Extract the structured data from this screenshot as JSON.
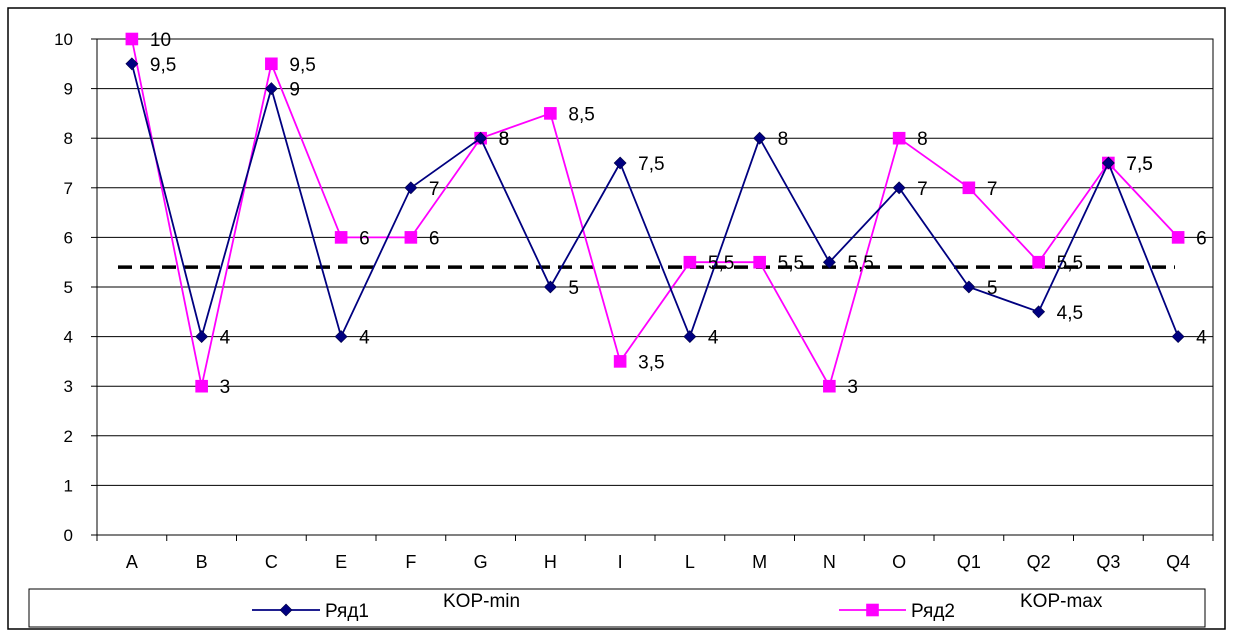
{
  "chart_data": {
    "type": "line",
    "categories": [
      "A",
      "B",
      "C",
      "E",
      "F",
      "G",
      "H",
      "I",
      "L",
      "M",
      "N",
      "O",
      "Q1",
      "Q2",
      "Q3",
      "Q4"
    ],
    "ylim": [
      0,
      10
    ],
    "yticks": [
      "0",
      "1",
      "2",
      "3",
      "4",
      "5",
      "6",
      "7",
      "8",
      "9",
      "10"
    ],
    "grid": true,
    "legend_position": "bottom",
    "reference_line": {
      "value": 5.4,
      "style": "dashed",
      "color": "#000000"
    },
    "series": [
      {
        "name": "Ряд1",
        "legend_note": "KOP-min",
        "color": "#000080",
        "marker": "diamond",
        "values": [
          9.5,
          4,
          9,
          4,
          7,
          8,
          5,
          7.5,
          4,
          8,
          5.5,
          7,
          5,
          4.5,
          7.5,
          4
        ],
        "data_labels": [
          "9,5",
          "4",
          "9",
          "4",
          "7",
          "8",
          "5",
          "7,5",
          "4",
          "8",
          "5,5",
          "7",
          "5",
          "4,5",
          "7,5",
          "4"
        ]
      },
      {
        "name": "Ряд2",
        "legend_note": "KOP-max",
        "color": "#ff00ff",
        "marker": "square",
        "values": [
          10,
          3,
          9.5,
          6,
          6,
          8,
          8.5,
          3.5,
          5.5,
          5.5,
          3,
          8,
          7,
          5.5,
          7.5,
          6
        ],
        "data_labels": [
          "10",
          "3",
          "9,5",
          "6",
          "6",
          "8",
          "8,5",
          "3,5",
          "5,5",
          "5,5",
          "3",
          "8",
          "7",
          "5,5",
          "7,5",
          "6"
        ]
      }
    ]
  }
}
